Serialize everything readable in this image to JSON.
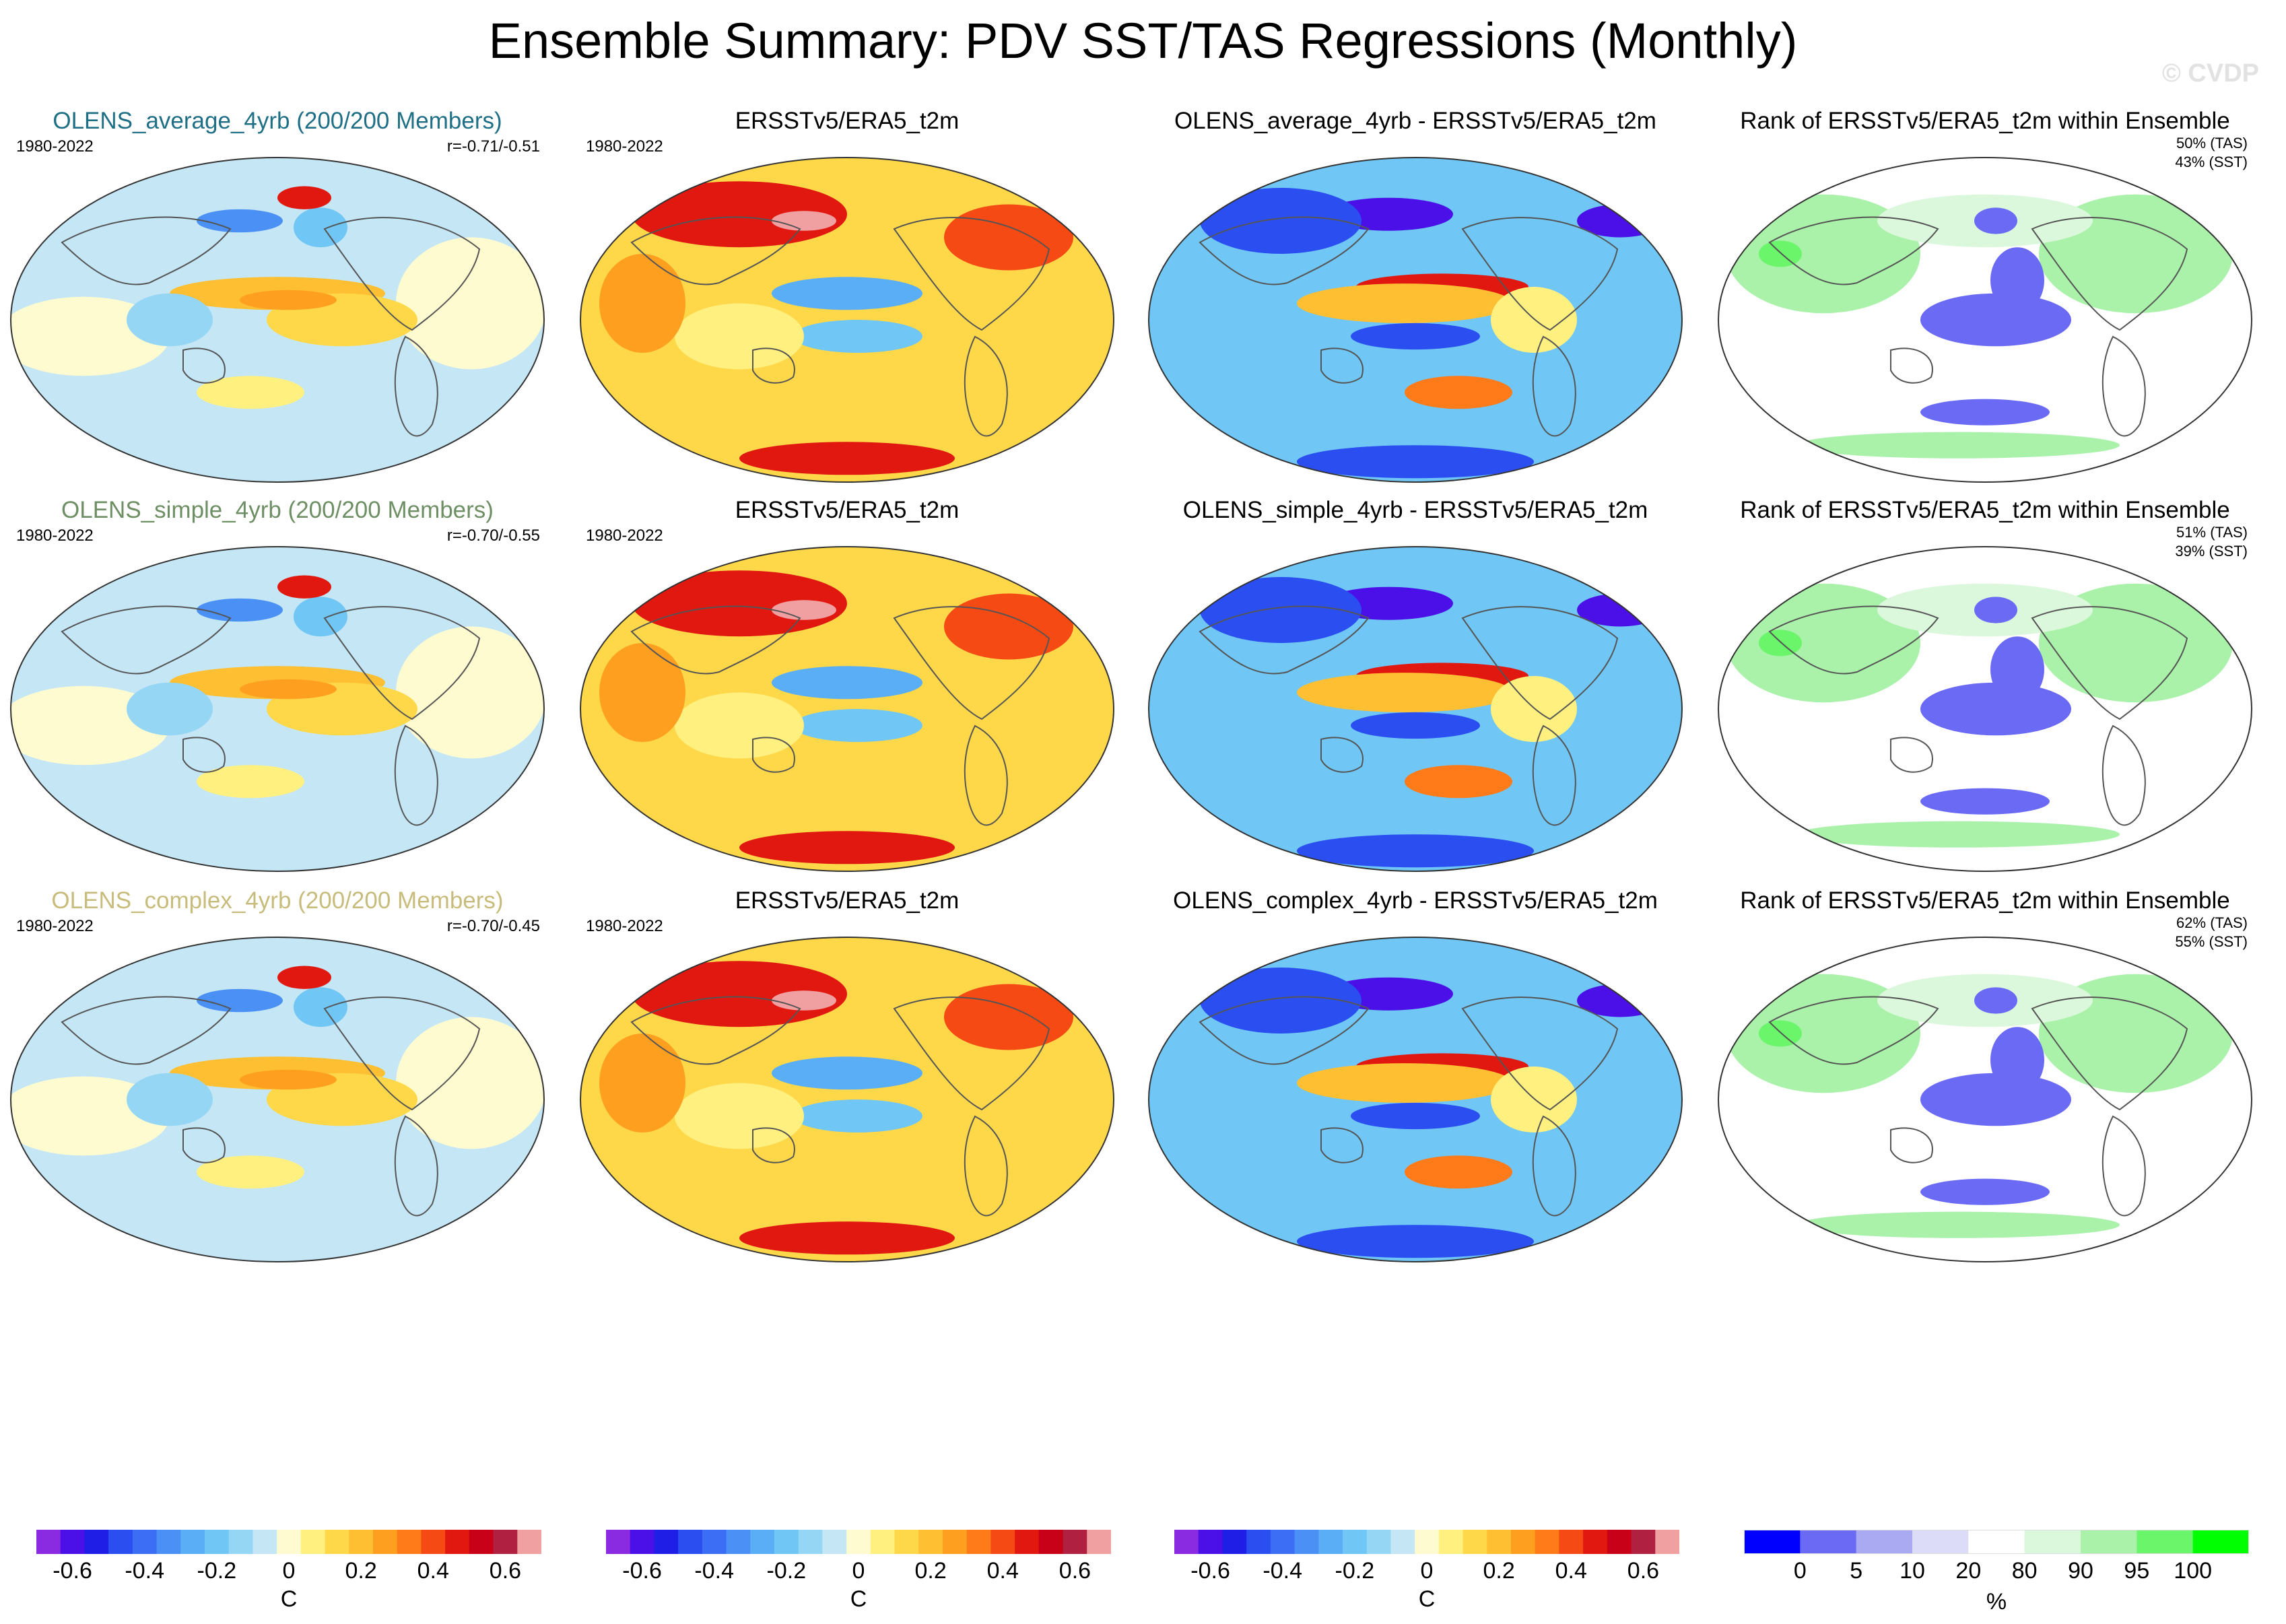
{
  "title": "Ensemble Summary: PDV SST/TAS Regressions (Monthly)",
  "watermark": "© CVDP",
  "rows": [
    {
      "model_title": "OLENS_average_4yrb (200/200 Members)",
      "model_color": "#1f6f86",
      "period": "1980-2022",
      "rvalue": "r=-0.71/-0.51",
      "obs_title": "ERSSTv5/ERA5_t2m",
      "diff_title": "OLENS_average_4yrb - ERSSTv5/ERA5_t2m",
      "rank_title": "Rank of ERSSTv5/ERA5_t2m within Ensemble",
      "rank_tas": "50% (TAS)",
      "rank_sst": "43% (SST)"
    },
    {
      "model_title": "OLENS_simple_4yrb (200/200 Members)",
      "model_color": "#6e8f64",
      "period": "1980-2022",
      "rvalue": "r=-0.70/-0.55",
      "obs_title": "ERSSTv5/ERA5_t2m",
      "diff_title": "OLENS_simple_4yrb - ERSSTv5/ERA5_t2m",
      "rank_title": "Rank of ERSSTv5/ERA5_t2m within Ensemble",
      "rank_tas": "51% (TAS)",
      "rank_sst": "39% (SST)"
    },
    {
      "model_title": "OLENS_complex_4yrb (200/200 Members)",
      "model_color": "#c8bc7c",
      "period": "1980-2022",
      "rvalue": "r=-0.70/-0.45",
      "obs_title": "ERSSTv5/ERA5_t2m",
      "diff_title": "OLENS_complex_4yrb - ERSSTv5/ERA5_t2m",
      "rank_title": "Rank of ERSSTv5/ERA5_t2m within Ensemble",
      "rank_tas": "62% (TAS)",
      "rank_sst": "55% (SST)"
    }
  ],
  "colorbars": {
    "regression": {
      "colors": [
        "#8a2be2",
        "#4b0fe8",
        "#1e1ee6",
        "#2a4ef0",
        "#3b6ef5",
        "#4a90f5",
        "#5aaef5",
        "#70c6f5",
        "#96d6f5",
        "#c4e6f5",
        "#fffbd0",
        "#fff080",
        "#ffd84a",
        "#ffbf32",
        "#ff9f20",
        "#ff7a18",
        "#f54a14",
        "#e01810",
        "#c80018",
        "#b02040",
        "#f0a0a0"
      ],
      "ticks": [
        "-0.6",
        "-0.4",
        "-0.2",
        "0",
        "0.2",
        "0.4",
        "0.6"
      ],
      "tick_values": [
        -0.6,
        -0.4,
        -0.2,
        0,
        0.2,
        0.4,
        0.6
      ],
      "range": [
        -0.7,
        0.7
      ],
      "unit": "C"
    },
    "rank": {
      "colors": [
        "#0000ff",
        "#6a6af5",
        "#aaaaf2",
        "#dcdcf8",
        "#ffffff",
        "#dcf8dc",
        "#aaf2aa",
        "#6af56a",
        "#00ff00"
      ],
      "boundaries": [
        0,
        5,
        10,
        20,
        80,
        90,
        95,
        100
      ],
      "ticks": [
        "0",
        "5",
        "10",
        "20",
        "80",
        "90",
        "95",
        "100"
      ],
      "unit": "%"
    }
  },
  "legend_labels": {
    "regression_unit": "C",
    "rank_unit": "%"
  }
}
